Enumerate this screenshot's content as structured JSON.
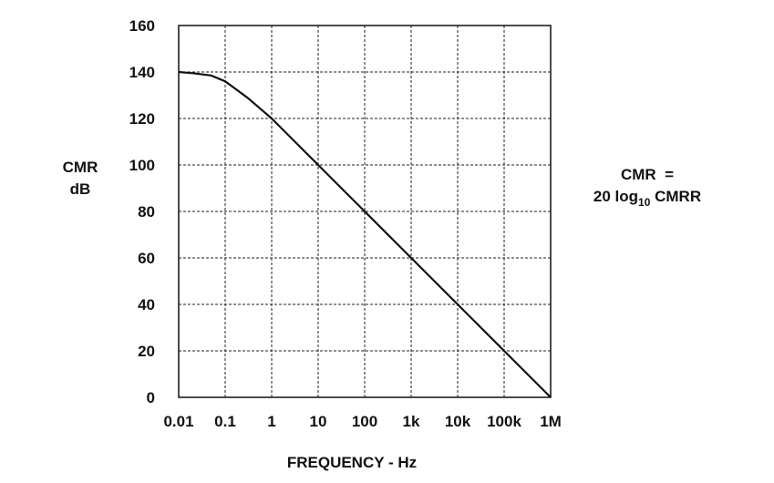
{
  "chart_data": {
    "type": "line",
    "x_scale": "log",
    "ylabel_line1": "CMR",
    "ylabel_line2": "dB",
    "xlabel": "FREQUENCY - Hz",
    "ylim": [
      0,
      160
    ],
    "yticks": [
      0,
      20,
      40,
      60,
      80,
      100,
      120,
      140,
      160
    ],
    "xticks": [
      0.01,
      0.1,
      1,
      10,
      100,
      1000,
      10000,
      100000,
      1000000
    ],
    "xtick_labels": [
      "0.01",
      "0.1",
      "1",
      "10",
      "100",
      "1k",
      "10k",
      "100k",
      "1M"
    ],
    "grid": true,
    "series": [
      {
        "x": [
          0.01,
          0.02,
          0.05,
          0.1,
          0.3,
          1,
          10,
          100,
          1000,
          10000,
          100000,
          1000000
        ],
        "values": [
          140,
          139.5,
          138.5,
          136,
          129,
          120,
          100,
          80,
          60,
          40,
          20,
          0
        ]
      }
    ],
    "annotation": {
      "line1": "CMR  =",
      "line2_prefix": "20 log",
      "line2_sub": "10",
      "line2_suffix": " CMRR"
    }
  }
}
